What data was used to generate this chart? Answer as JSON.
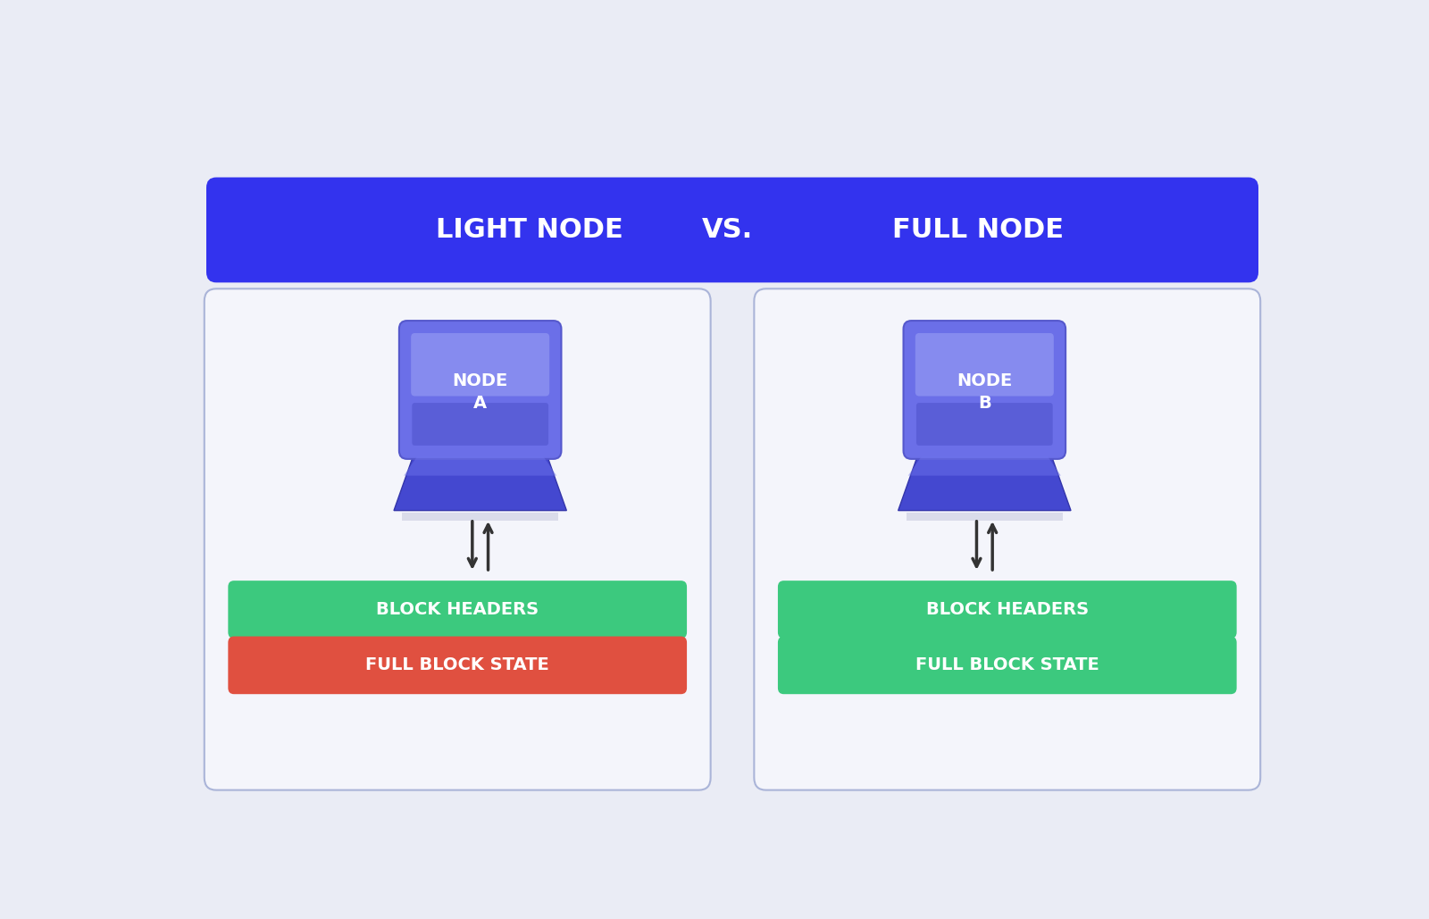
{
  "bg_color": "#eaecf5",
  "title_bg_color": "#3333ee",
  "title_text_color": "#ffffff",
  "title_left": "LIGHT NODE",
  "title_vs": "VS.",
  "title_right": "FULL NODE",
  "panel_bg_color": "#f4f5fb",
  "panel_border_color": "#aab4d8",
  "node_a_label": "NODE\nA",
  "node_b_label": "NODE\nB",
  "green_color": "#3cc97e",
  "red_color": "#e05040",
  "bar1_left": "BLOCK HEADERS",
  "bar2_left": "FULL BLOCK STATE",
  "bar1_right": "BLOCK HEADERS",
  "bar2_right": "FULL BLOCK STATE",
  "bar_text_color": "#ffffff",
  "arrow_color": "#333333",
  "fig_width": 16.0,
  "fig_height": 10.29
}
